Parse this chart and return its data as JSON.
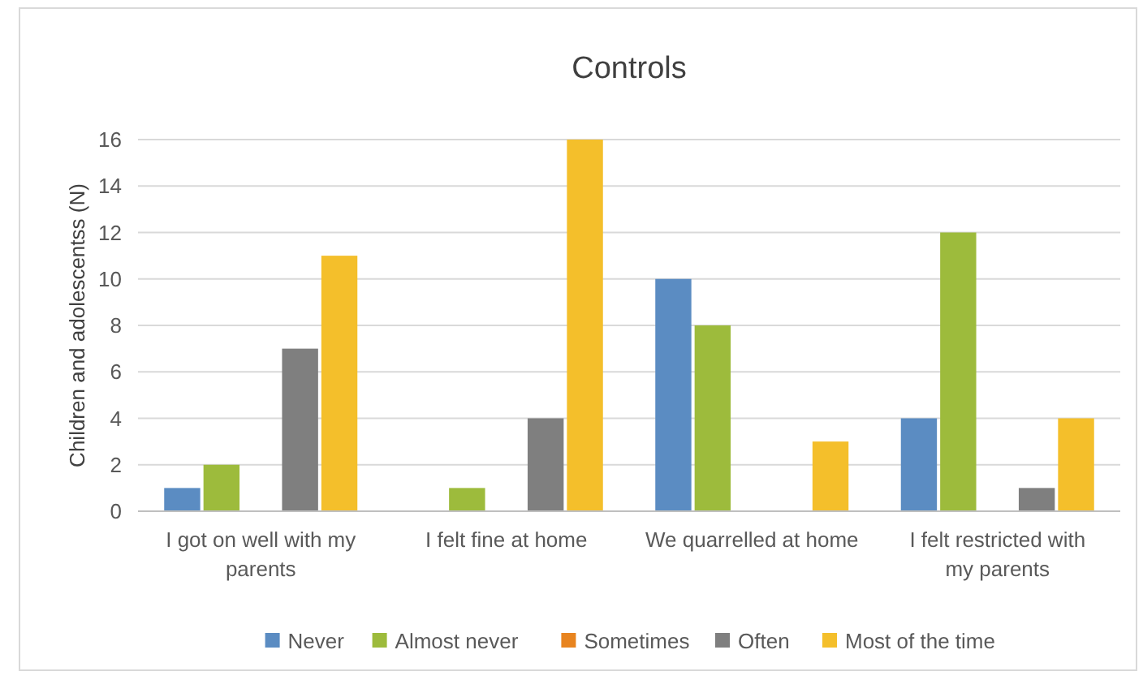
{
  "chart_data": {
    "type": "bar",
    "title": "Controls",
    "ylabel": "Children and adolescentss (N)",
    "categories": [
      "I got on well with my parents",
      "I felt fine at home",
      "We quarrelled at home",
      "I felt restricted with my parents"
    ],
    "series": [
      {
        "name": "Never",
        "color": "#5b8cc2",
        "values": [
          1,
          0,
          10,
          4
        ]
      },
      {
        "name": "Almost never",
        "color": "#9dbb3c",
        "values": [
          2,
          1,
          8,
          12
        ]
      },
      {
        "name": "Sometimes",
        "color": "#e8841f",
        "values": [
          0,
          0,
          0,
          0
        ]
      },
      {
        "name": "Often",
        "color": "#7f7f7f",
        "values": [
          7,
          4,
          0,
          1
        ]
      },
      {
        "name": "Most of the time",
        "color": "#f4bf2b",
        "values": [
          11,
          16,
          3,
          4
        ]
      }
    ],
    "ylim": [
      0,
      16
    ],
    "yticks": [
      0,
      2,
      4,
      6,
      8,
      10,
      12,
      14,
      16
    ],
    "grid": "y",
    "legend": "bottom"
  }
}
